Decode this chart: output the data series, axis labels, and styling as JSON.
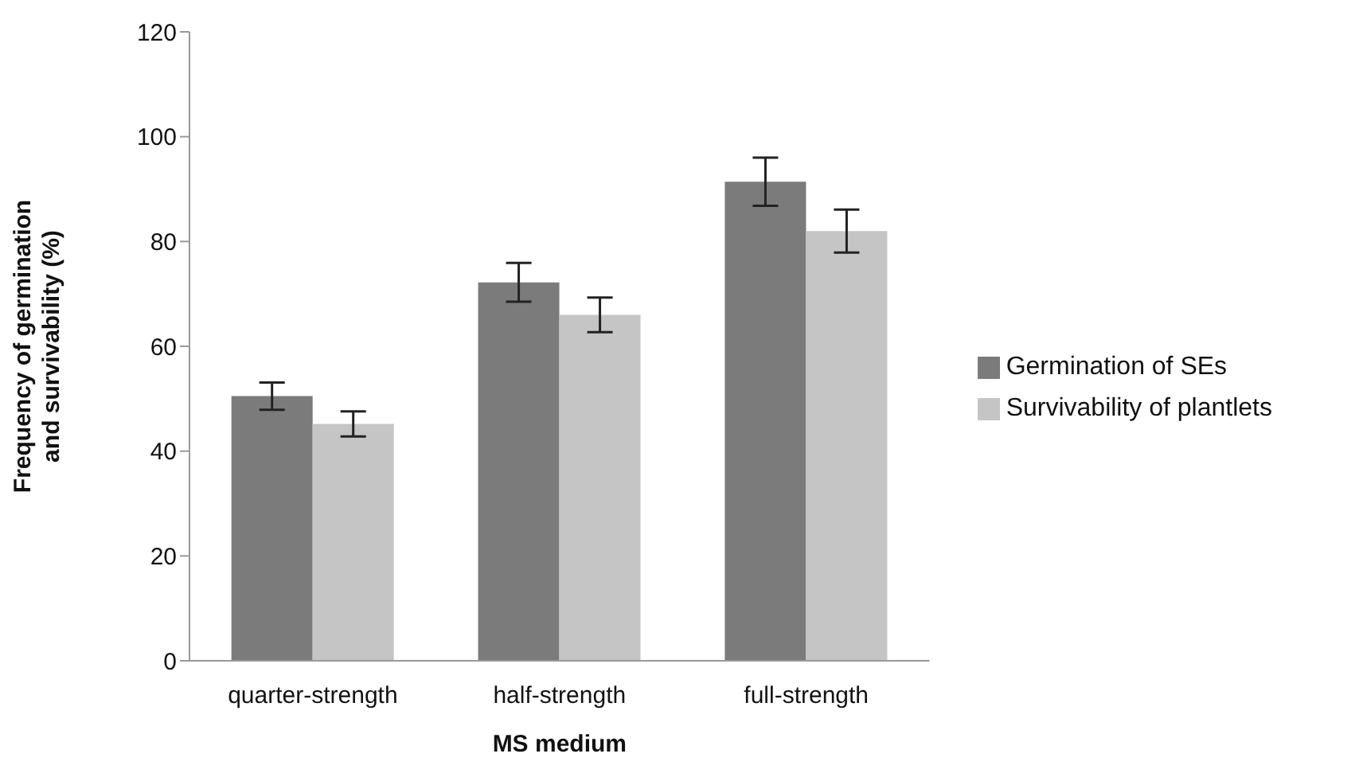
{
  "chart_data": {
    "type": "bar",
    "xlabel": "MS medium",
    "ylabel": "Frequency of germination and survivability (%)",
    "categories": [
      "quarter-strength",
      "half-strength",
      "full-strength"
    ],
    "series": [
      {
        "name": "Germination of SEs",
        "color": "#7b7b7b",
        "values": [
          50.5,
          72.2,
          91.4
        ],
        "errors": [
          2.6,
          3.7,
          4.6
        ]
      },
      {
        "name": "Survivability of plantlets",
        "color": "#c4c5c4",
        "values": [
          45.2,
          66.0,
          82.0
        ],
        "errors": [
          2.4,
          3.3,
          4.1
        ]
      }
    ],
    "ylim": [
      0,
      120
    ],
    "yticks": [
      0,
      20,
      40,
      60,
      80,
      100,
      120
    ],
    "grid": false,
    "legend": "right"
  }
}
